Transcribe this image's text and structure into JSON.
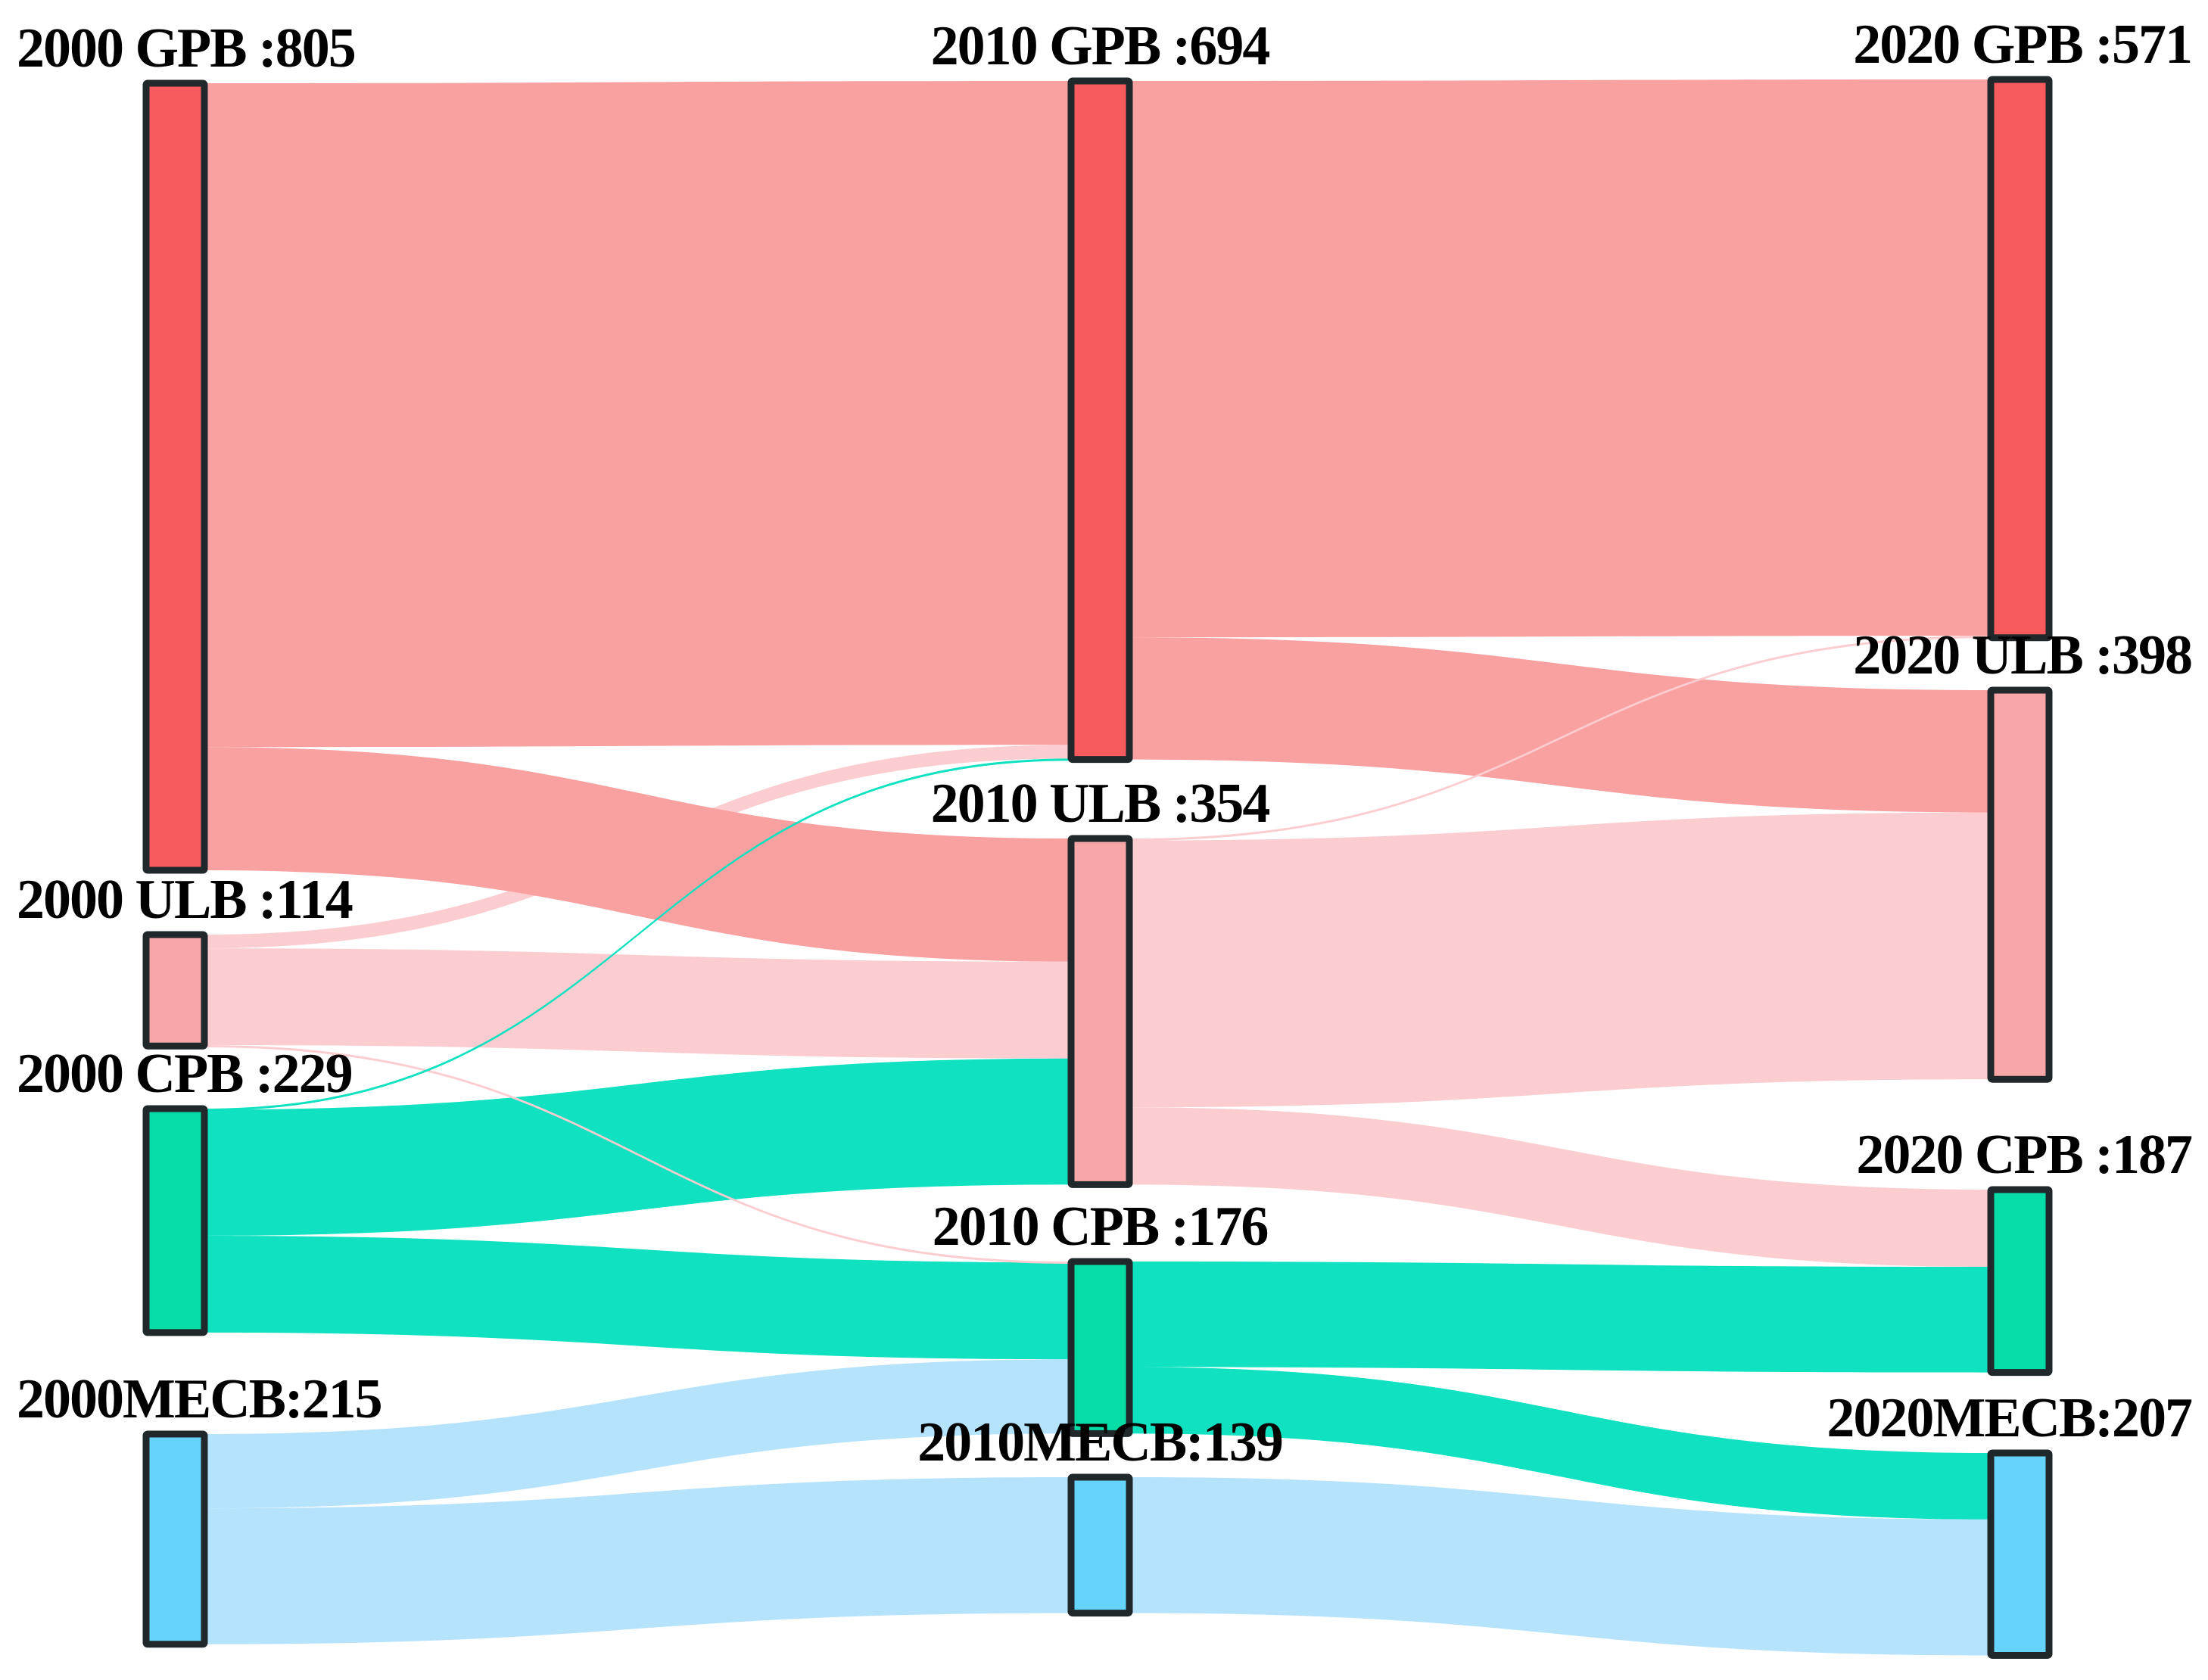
{
  "chart_data": {
    "type": "sankey",
    "title": "",
    "background_color": "#ffffff",
    "node_border_color": "#20282c",
    "columns": [
      "2000",
      "2010",
      "2020"
    ],
    "categories": [
      {
        "key": "GPB",
        "node_color": "#F85B5D",
        "flow_color": "#F9A0A1"
      },
      {
        "key": "ULB",
        "node_color": "#F9A6A8",
        "flow_color": "#FBCDD0"
      },
      {
        "key": "CPB",
        "node_color": "#05DCA6",
        "flow_color": "#0FE1C1"
      },
      {
        "key": "MECB",
        "node_color": "#66D4FA",
        "flow_color": "#B5E3FB"
      }
    ],
    "nodes": [
      {
        "id": "2000-GPB",
        "label": "2000 GPB :805",
        "year": "2000",
        "category": "GPB",
        "value": 805
      },
      {
        "id": "2000-ULB",
        "label": "2000 ULB :114",
        "year": "2000",
        "category": "ULB",
        "value": 114
      },
      {
        "id": "2000-CPB",
        "label": "2000 CPB :229",
        "year": "2000",
        "category": "CPB",
        "value": 229
      },
      {
        "id": "2000-MECB",
        "label": "2000MECB:215",
        "year": "2000",
        "category": "MECB",
        "value": 215
      },
      {
        "id": "2010-GPB",
        "label": "2010 GPB :694",
        "year": "2010",
        "category": "GPB",
        "value": 694
      },
      {
        "id": "2010-ULB",
        "label": "2010 ULB :354",
        "year": "2010",
        "category": "ULB",
        "value": 354
      },
      {
        "id": "2010-CPB",
        "label": "2010 CPB :176",
        "year": "2010",
        "category": "CPB",
        "value": 176
      },
      {
        "id": "2010-MECB",
        "label": "2010MECB:139",
        "year": "2010",
        "category": "MECB",
        "value": 139
      },
      {
        "id": "2020-GPB",
        "label": "2020 GPB :571",
        "year": "2020",
        "category": "GPB",
        "value": 571
      },
      {
        "id": "2020-ULB",
        "label": "2020 ULB :398",
        "year": "2020",
        "category": "ULB",
        "value": 398
      },
      {
        "id": "2020-CPB",
        "label": "2020 CPB :187",
        "year": "2020",
        "category": "CPB",
        "value": 187
      },
      {
        "id": "2020-MECB",
        "label": "2020MECB:207",
        "year": "2020",
        "category": "MECB",
        "value": 207
      }
    ],
    "links": [
      {
        "source": "2000-GPB",
        "target": "2010-GPB",
        "value": 679
      },
      {
        "source": "2000-GPB",
        "target": "2010-ULB",
        "value": 126
      },
      {
        "source": "2000-ULB",
        "target": "2010-GPB",
        "value": 14
      },
      {
        "source": "2000-ULB",
        "target": "2010-ULB",
        "value": 99
      },
      {
        "source": "2000-ULB",
        "target": "2010-CPB",
        "value": 1
      },
      {
        "source": "2000-CPB",
        "target": "2010-GPB",
        "value": 1
      },
      {
        "source": "2000-CPB",
        "target": "2010-ULB",
        "value": 129
      },
      {
        "source": "2000-CPB",
        "target": "2010-CPB",
        "value": 99
      },
      {
        "source": "2000-MECB",
        "target": "2010-CPB",
        "value": 76
      },
      {
        "source": "2000-MECB",
        "target": "2010-MECB",
        "value": 139
      },
      {
        "source": "2010-GPB",
        "target": "2020-GPB",
        "value": 569
      },
      {
        "source": "2010-GPB",
        "target": "2020-ULB",
        "value": 125
      },
      {
        "source": "2010-ULB",
        "target": "2020-GPB",
        "value": 2
      },
      {
        "source": "2010-ULB",
        "target": "2020-ULB",
        "value": 273
      },
      {
        "source": "2010-ULB",
        "target": "2020-CPB",
        "value": 79
      },
      {
        "source": "2010-CPB",
        "target": "2020-CPB",
        "value": 108
      },
      {
        "source": "2010-CPB",
        "target": "2020-MECB",
        "value": 68
      },
      {
        "source": "2010-MECB",
        "target": "2020-MECB",
        "value": 139
      }
    ]
  }
}
